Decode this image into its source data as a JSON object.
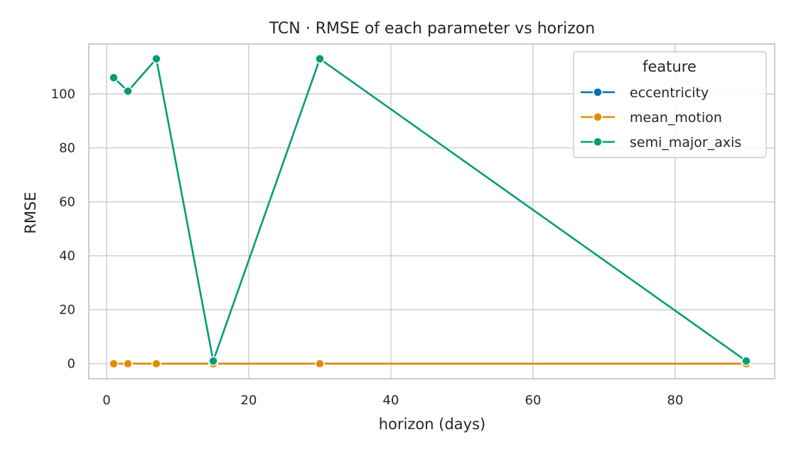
{
  "chart_data": {
    "type": "line",
    "title": "TCN · RMSE of each parameter vs horizon",
    "xlabel": "horizon (days)",
    "ylabel": "RMSE",
    "x": [
      1,
      3,
      7,
      15,
      30,
      90
    ],
    "xlim": [
      -2.5,
      94
    ],
    "ylim": [
      -5.6,
      118.5
    ],
    "xticks": [
      0,
      20,
      40,
      60,
      80
    ],
    "yticks": [
      0,
      20,
      40,
      60,
      80,
      100
    ],
    "grid": true,
    "legend": {
      "title": "feature",
      "placement": "top-right"
    },
    "series": [
      {
        "name": "eccentricity",
        "color": "#0173b2",
        "values": [
          0,
          0,
          0,
          0,
          0,
          0
        ]
      },
      {
        "name": "mean_motion",
        "color": "#de8f05",
        "values": [
          0,
          0,
          0,
          0,
          0,
          0
        ]
      },
      {
        "name": "semi_major_axis",
        "color": "#029e73",
        "values": [
          106,
          101,
          113,
          1,
          113,
          1
        ]
      }
    ]
  }
}
